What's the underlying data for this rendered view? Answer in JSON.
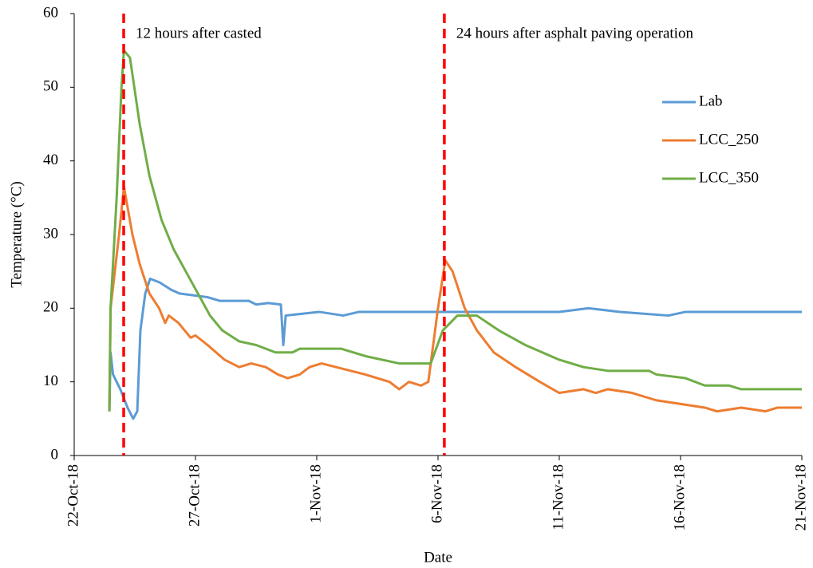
{
  "chart_data": {
    "type": "line",
    "y_label": "Temperature (°C)",
    "x_label": "Date",
    "xlim": [
      0,
      30
    ],
    "xticks": [
      {
        "value": 0,
        "label": "22-Oct-18"
      },
      {
        "value": 5,
        "label": "27-Oct-18"
      },
      {
        "value": 10,
        "label": "1-Nov-18"
      },
      {
        "value": 15,
        "label": "6-Nov-18"
      },
      {
        "value": 20,
        "label": "11-Nov-18"
      },
      {
        "value": 25,
        "label": "16-Nov-18"
      },
      {
        "value": 30,
        "label": "21-Nov-18"
      }
    ],
    "ylim": [
      0,
      60
    ],
    "yticks": [
      0,
      10,
      20,
      30,
      40,
      50,
      60
    ],
    "grid": false,
    "legend": "upper right",
    "markers": [
      {
        "x": 2.04,
        "label": "12 hours after casted",
        "color": "#ff0000"
      },
      {
        "x": 15.26,
        "label": "24 hours after asphalt paving operation",
        "color": "#ff0000"
      }
    ],
    "series": [
      {
        "name": "Lab",
        "color": "#5b9bd5",
        "x": [
          1.45,
          1.5,
          1.6,
          1.9,
          2.2,
          2.43,
          2.6,
          2.73,
          2.93,
          3.13,
          3.52,
          4.0,
          4.34,
          5.49,
          6.0,
          7.2,
          7.5,
          8.0,
          8.52,
          8.62,
          8.72,
          10.1,
          11.09,
          11.74,
          20,
          21.2,
          22.5,
          24.5,
          25.2,
          30
        ],
        "values": [
          6,
          14,
          11,
          9,
          6.5,
          5,
          6,
          17,
          22,
          24,
          23.5,
          22.5,
          22,
          21.5,
          21,
          21,
          20.5,
          20.7,
          20.5,
          15,
          19,
          19.5,
          19,
          19.5,
          19.5,
          20,
          19.5,
          19,
          19.5,
          19.5
        ]
      },
      {
        "name": "LCC_250",
        "color": "#ed7d31",
        "x": [
          1.45,
          1.5,
          1.85,
          2.05,
          2.4,
          2.7,
          3.1,
          3.5,
          3.75,
          3.9,
          4.3,
          4.8,
          5.0,
          5.5,
          6.2,
          6.8,
          7.3,
          7.9,
          8.4,
          8.8,
          9.3,
          9.7,
          10.2,
          10.8,
          12,
          13,
          13.4,
          13.8,
          14.3,
          14.6,
          15.0,
          15.3,
          15.6,
          16.1,
          16.6,
          17.3,
          18.2,
          19.2,
          20.0,
          21,
          21.5,
          22,
          23,
          24,
          25,
          26,
          26.5,
          27.5,
          28.5,
          29,
          30
        ],
        "values": [
          6,
          20,
          30,
          36.5,
          30,
          26,
          22,
          20,
          18,
          19,
          18,
          16,
          16.3,
          15,
          13,
          12,
          12.5,
          12,
          11,
          10.5,
          11,
          12,
          12.5,
          12,
          11,
          10,
          9,
          10,
          9.5,
          10,
          20,
          26.5,
          25,
          20,
          17,
          14,
          12,
          10,
          8.5,
          9,
          8.5,
          9,
          8.5,
          7.5,
          7,
          6.5,
          6,
          6.5,
          6,
          6.5,
          6.5
        ]
      },
      {
        "name": "LCC_350",
        "color": "#70ad47",
        "x": [
          1.45,
          1.5,
          1.75,
          1.95,
          2.05,
          2.3,
          2.7,
          3.1,
          3.6,
          4.1,
          4.6,
          5.1,
          5.6,
          6.1,
          6.8,
          7.5,
          8.3,
          9,
          9.3,
          11,
          12,
          13.4,
          14.7,
          15.2,
          15.8,
          16.6,
          17.5,
          18.6,
          20,
          21,
          22,
          23.7,
          24,
          25.2,
          26,
          27,
          27.5,
          30
        ],
        "values": [
          6,
          20,
          35,
          50,
          55,
          54,
          45,
          38,
          32,
          28,
          25,
          22,
          19,
          17,
          15.5,
          15,
          14,
          14,
          14.5,
          14.5,
          13.5,
          12.5,
          12.5,
          17,
          19,
          19,
          17,
          15,
          13,
          12,
          11.5,
          11.5,
          11,
          10.5,
          9.5,
          9.5,
          9,
          9
        ]
      }
    ]
  }
}
